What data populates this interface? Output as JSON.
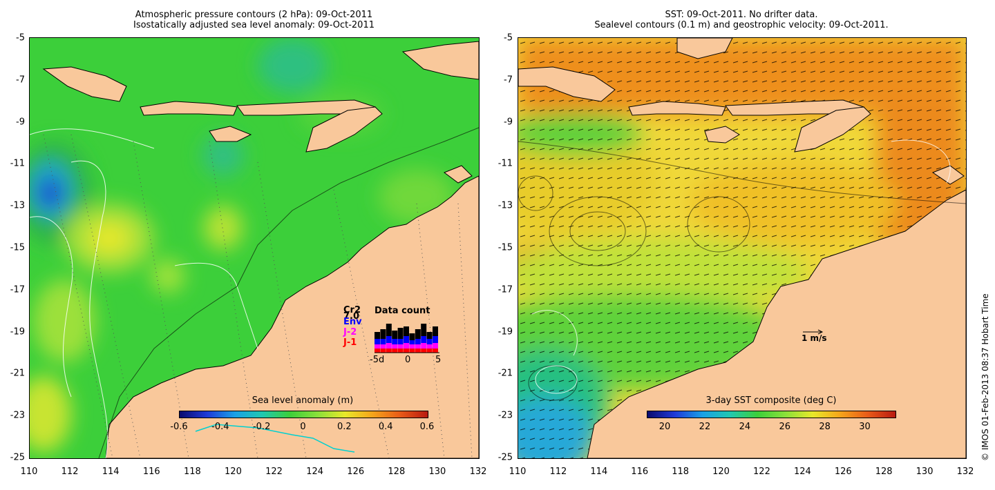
{
  "left_panel": {
    "title_line1": "Atmospheric pressure contours (2 hPa): 09-Oct-2011",
    "title_line2": "Isostatically adjusted sea level anomaly: 09-Oct-2011",
    "colorbar_label": "Sea level anomaly (m)",
    "colorbar_ticks": [
      "-0.6",
      "-0.4",
      "-0.2",
      "0",
      "0.2",
      "0.4",
      "0.6"
    ],
    "inset": {
      "title": "Data count",
      "sat_labels": [
        "Cr2",
        "7.0",
        "Env",
        "J-2",
        "J-1"
      ],
      "sat_colors": [
        "#000000",
        "#000000",
        "#0000ff",
        "#ff00ff",
        "#ff0000"
      ],
      "axis_ticks": [
        "-5d",
        "0",
        "5"
      ]
    }
  },
  "right_panel": {
    "title_line1": "SST: 09-Oct-2011. No drifter data.",
    "title_line2": "Sealevel contours (0.1 m) and geostrophic velocity: 09-Oct-2011.",
    "colorbar_label": "3-day SST composite (deg C)",
    "colorbar_ticks": [
      "20",
      "22",
      "24",
      "26",
      "28",
      "30"
    ],
    "velocity_scale_label": "1 m/s"
  },
  "axes": {
    "x_ticks": [
      "110",
      "112",
      "114",
      "116",
      "118",
      "120",
      "122",
      "124",
      "126",
      "128",
      "130",
      "132"
    ],
    "y_ticks": [
      "-5",
      "-7",
      "-9",
      "-11",
      "-13",
      "-15",
      "-17",
      "-19",
      "-21",
      "-23",
      "-25"
    ]
  },
  "credit": "© IMOS 01-Feb-2013 08:37 Hobart Time",
  "colors": {
    "land": "#f9c89b",
    "ocean_green": "#3ed23a",
    "sst_orange": "#f29a1a",
    "sst_yellow": "#f0e82a"
  }
}
